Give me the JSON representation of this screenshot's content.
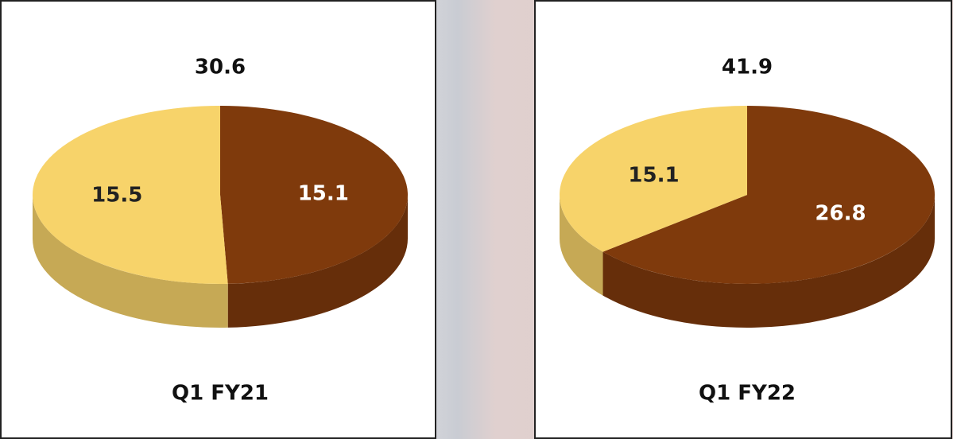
{
  "chart_data": [
    {
      "type": "pie",
      "total": 30.6,
      "title": "Q1 FY21",
      "values": [
        15.1,
        15.5
      ],
      "colors": [
        "#7f3a0c",
        "#f7d36a"
      ]
    },
    {
      "type": "pie",
      "total": 41.9,
      "title": "Q1 FY22",
      "values": [
        26.8,
        15.1
      ],
      "colors": [
        "#7f3a0c",
        "#f7d36a"
      ]
    }
  ]
}
